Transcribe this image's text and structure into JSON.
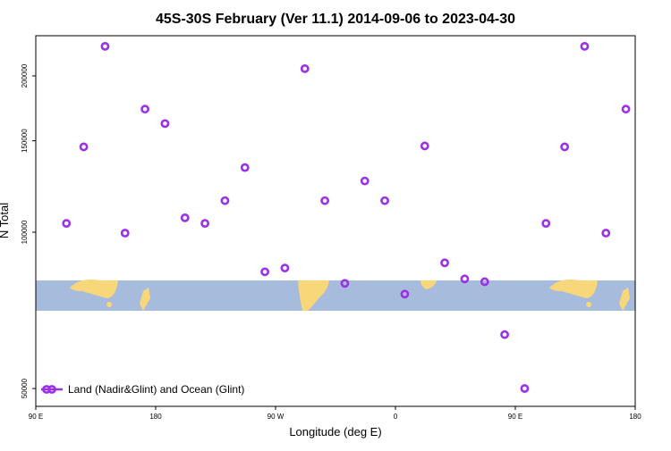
{
  "chart_data": {
    "type": "scatter",
    "title": "45S-30S February (Ver 11.1)   2014-09-06 to 2023-04-30",
    "x_label": "Longitude (deg E)",
    "y_label": "N Total",
    "log_y": true,
    "xlim": [
      90,
      540
    ],
    "ylim": [
      46200,
      239000
    ],
    "xticks": [
      {
        "value": 90,
        "label": "90 E"
      },
      180,
      {
        "value": 270,
        "label": "90 W"
      },
      {
        "value": 360,
        "label": "0"
      },
      {
        "value": 450,
        "label": "90 E"
      },
      {
        "value": 540,
        "label": "180"
      }
    ],
    "yticks": [
      50000,
      100000,
      150000,
      200000
    ],
    "legend_position": "bottom-left",
    "series": [
      {
        "name": "Land (Nadir&Glint) and Ocean (Glint)",
        "color": "#9b30e6",
        "x": [
          113,
          126,
          142,
          157,
          172,
          187,
          202,
          217,
          232,
          247,
          262,
          277,
          292,
          307,
          322,
          337,
          352,
          367,
          382,
          397,
          412,
          427,
          442,
          457,
          473,
          487,
          502,
          518,
          533
        ],
        "values": [
          104000,
          146000,
          228000,
          99600,
          172600,
          161900,
          106600,
          104000,
          115000,
          133200,
          83900,
          85300,
          206500,
          115000,
          79700,
          125500,
          115000,
          76000,
          146600,
          87300,
          81300,
          80300,
          63500,
          50000,
          104000,
          146000,
          228000,
          99600,
          172600
        ]
      }
    ]
  }
}
